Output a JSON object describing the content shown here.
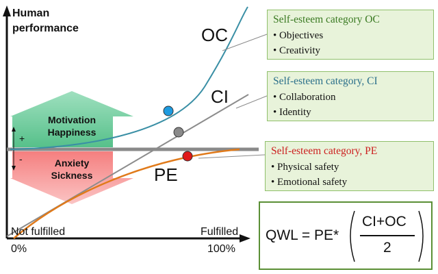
{
  "axis": {
    "y_label_line1": "Human",
    "y_label_line2": "performance",
    "x_start_label": "Not fulfilled",
    "x_start_pct": "0%",
    "x_end_label": "Fulfilled",
    "x_end_pct": "100%",
    "plus": "+",
    "minus": "-"
  },
  "curves": {
    "oc_label": "OC",
    "ci_label": "CI",
    "pe_label": "PE"
  },
  "arrows": {
    "up_line1": "Motivation",
    "up_line2": "Happiness",
    "down_line1": "Anxiety",
    "down_line2": "Sickness"
  },
  "boxes": {
    "oc": {
      "title": "Self-esteem category OC",
      "items": [
        "Objectives",
        "Creativity"
      ],
      "title_color": "#3a7a22"
    },
    "ci": {
      "title": "Self-esteem category, CI",
      "items": [
        "Collaboration",
        "Identity"
      ],
      "title_color": "#2a6f8a"
    },
    "pe": {
      "title": "Self-esteem category, PE",
      "items": [
        "Physical safety",
        "Emotional safety"
      ],
      "title_color": "#cc1f1f"
    }
  },
  "formula": {
    "lhs": "QWL = PE*",
    "numerator": "CI+OC",
    "denominator": "2"
  },
  "colors": {
    "oc_curve": "#3a8fa5",
    "ci_curve": "#8c8c8c",
    "pe_curve": "#e07a1a",
    "oc_dot": "#1e9be0",
    "ci_dot": "#8a8a8a",
    "pe_dot": "#e01818",
    "up_arrow": "#6fcf97",
    "down_arrow": "#f28a8a"
  }
}
